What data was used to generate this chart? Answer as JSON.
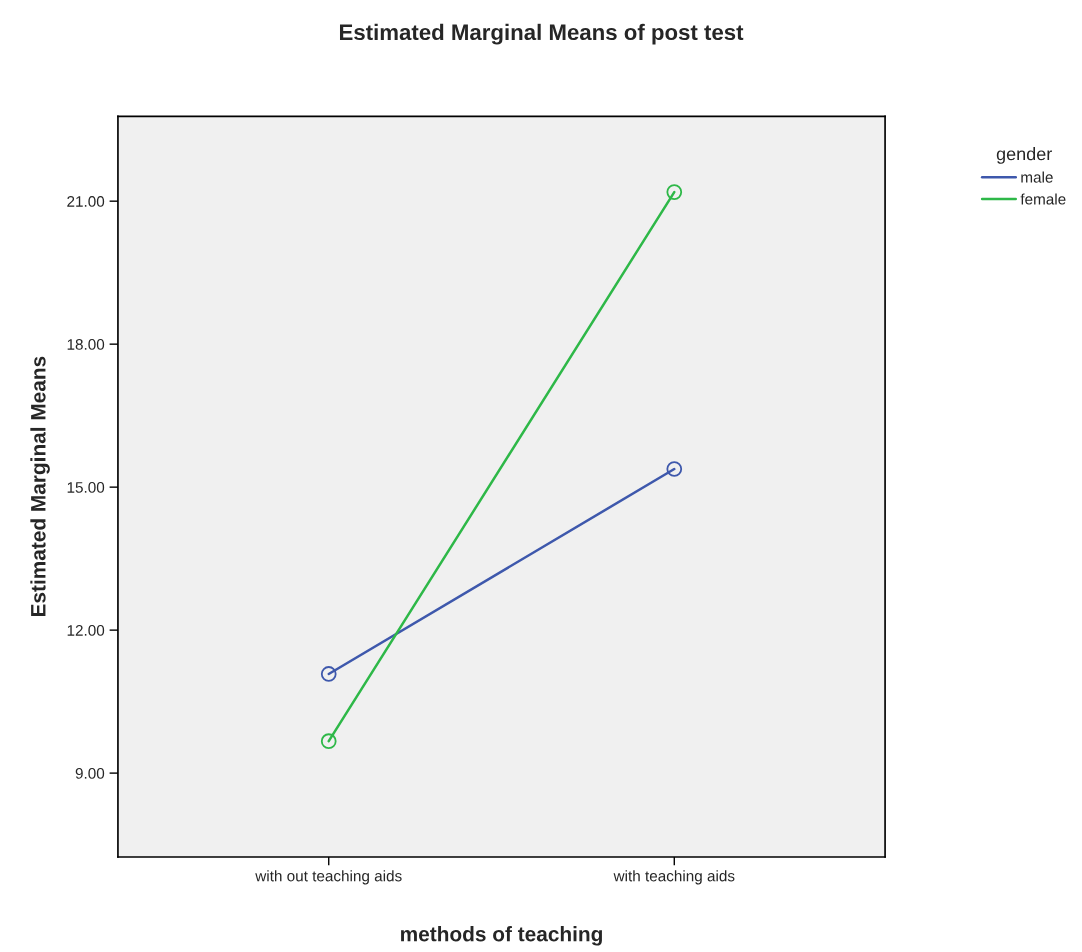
{
  "chart_data": {
    "type": "line",
    "title": "Estimated Marginal Means of post test",
    "xlabel": "methods of teaching",
    "ylabel": "Estimated Marginal Means",
    "legend_title": "gender",
    "categories": [
      "with out teaching aids",
      "with teaching aids"
    ],
    "series": [
      {
        "name": "male",
        "color": "#3e58ac",
        "values": [
          11.08,
          15.38
        ]
      },
      {
        "name": "female",
        "color": "#2eb848",
        "values": [
          9.67,
          21.19
        ]
      }
    ],
    "ylim": [
      7.24,
      22.78
    ],
    "yticks": [
      {
        "value": 9,
        "label": "9.00"
      },
      {
        "value": 12,
        "label": "12.00"
      },
      {
        "value": 15,
        "label": "15.00"
      },
      {
        "value": 18,
        "label": "18.00"
      },
      {
        "value": 21,
        "label": "21.00"
      }
    ],
    "grid": false,
    "legend": "top right",
    "marker": "circle",
    "line_style": "solid"
  }
}
